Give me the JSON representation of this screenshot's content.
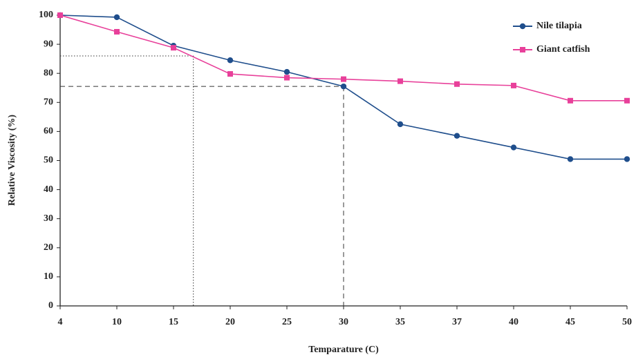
{
  "chart_data": {
    "type": "line",
    "x_label": "Temparature (C)",
    "y_label": "Relative Viscosity (%)",
    "categories": [
      "4",
      "10",
      "15",
      "20",
      "25",
      "30",
      "35",
      "37",
      "40",
      "45",
      "50"
    ],
    "series": [
      {
        "name": "Nile tilapia",
        "color": "#1f4e8c",
        "marker": "circle",
        "values": [
          100,
          99.3,
          89.5,
          84.5,
          80.5,
          75.5,
          62.5,
          58.5,
          54.5,
          50.5,
          50.5
        ]
      },
      {
        "name": "Giant catfish",
        "color": "#e8409a",
        "marker": "square",
        "values": [
          100,
          94.3,
          88.8,
          79.8,
          78.5,
          78,
          77.3,
          76.3,
          75.8,
          70.6,
          70.6
        ]
      }
    ],
    "reference_lines": [
      {
        "x": 2.35,
        "y": 86,
        "style": "dotted"
      },
      {
        "x": 5,
        "y": 75.5,
        "style": "dashed"
      }
    ],
    "ylim": [
      0,
      100
    ],
    "yticks": [
      0,
      10,
      20,
      30,
      40,
      50,
      60,
      70,
      80,
      90,
      100
    ],
    "grid": false,
    "legend": "top-right"
  }
}
